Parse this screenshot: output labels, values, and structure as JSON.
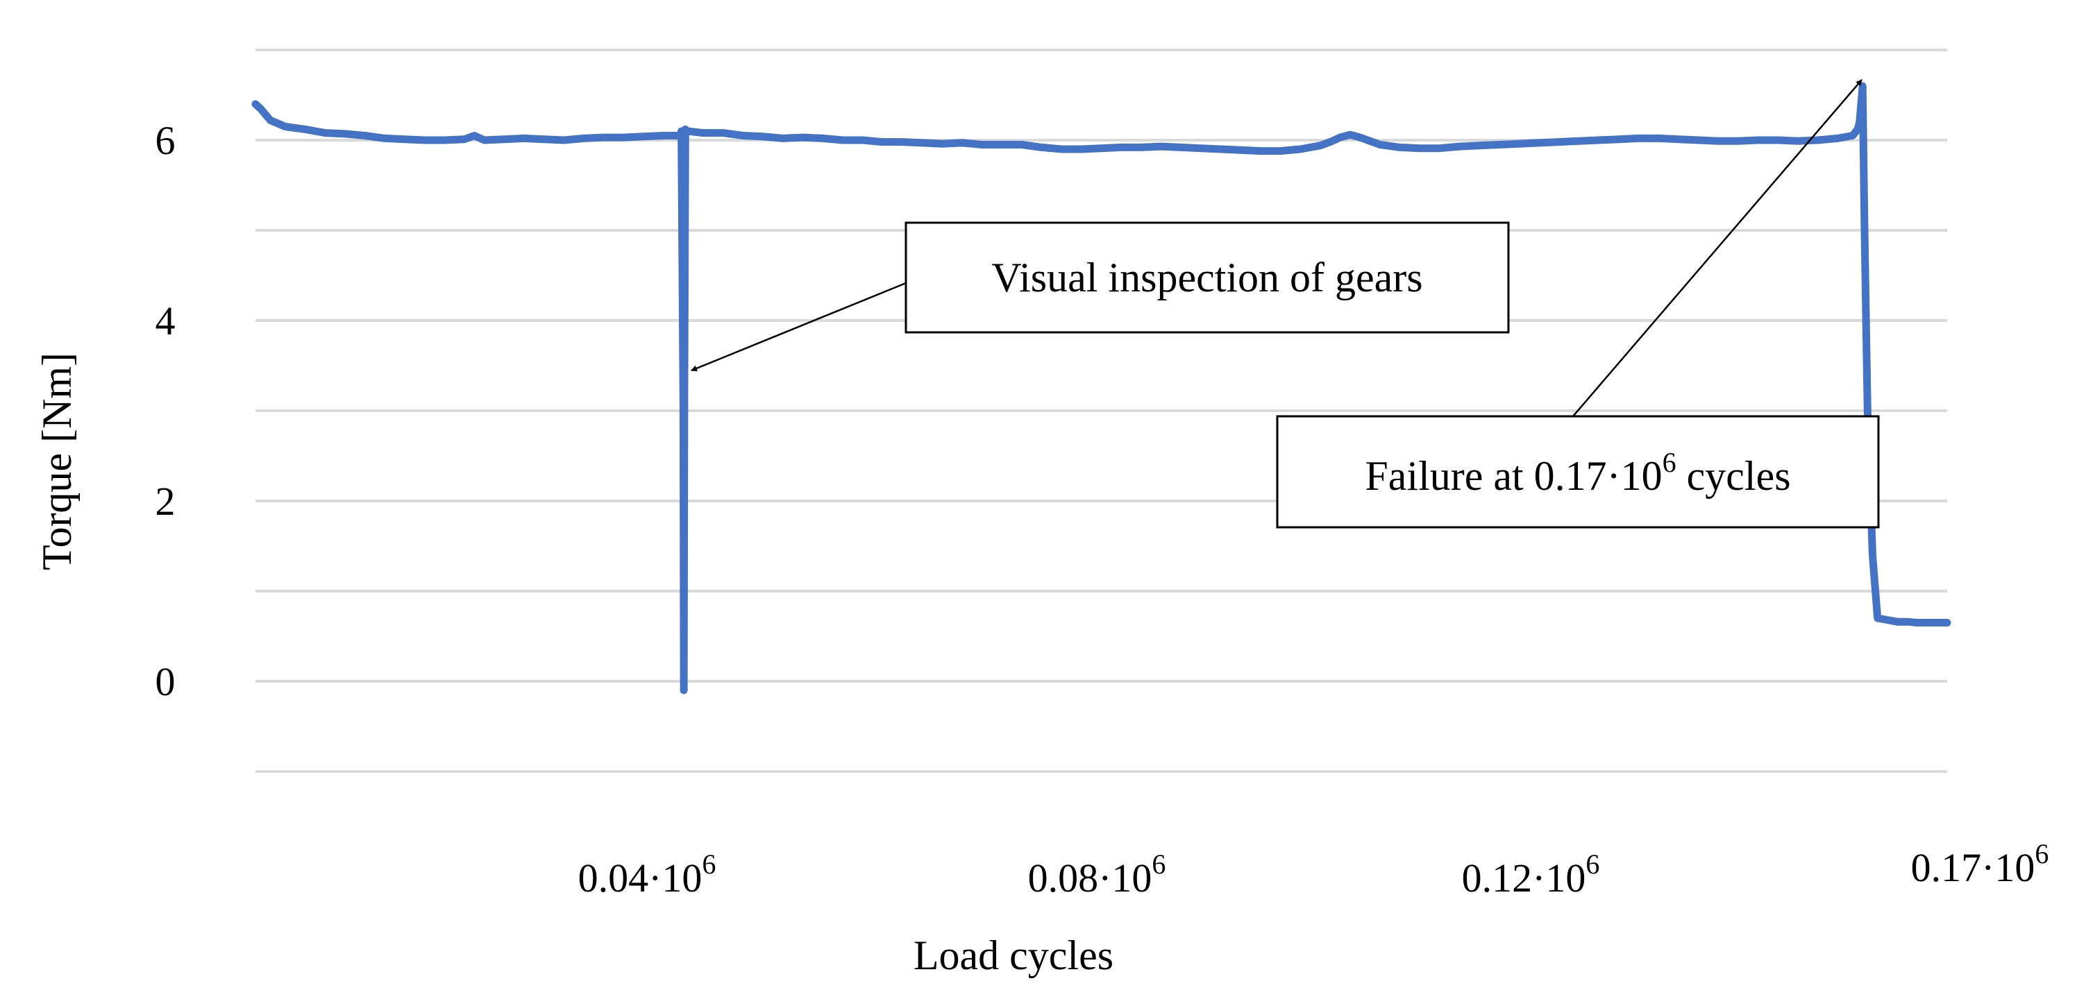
{
  "chart_data": {
    "type": "line",
    "title": "",
    "xlabel": "Load cycles",
    "ylabel": "Torque [Nm]",
    "xlim": [
      0,
      170000
    ],
    "ylim": [
      -1,
      7
    ],
    "grid": true,
    "y_gridlines": [
      -1,
      0,
      1,
      2,
      3,
      4,
      5,
      6,
      7
    ],
    "y_ticks": [
      {
        "value": 0,
        "label": "0"
      },
      {
        "value": 2,
        "label": "2"
      },
      {
        "value": 4,
        "label": "4"
      },
      {
        "value": 6,
        "label": "6"
      }
    ],
    "x_ticks": [
      {
        "value": 40000,
        "mantissa": "0.04·10",
        "exponent": "6"
      },
      {
        "value": 80000,
        "mantissa": "0.08·10",
        "exponent": "6"
      },
      {
        "value": 120000,
        "mantissa": "0.12·10",
        "exponent": "6"
      },
      {
        "value": 170000,
        "mantissa": "0.17·10",
        "exponent": "6"
      }
    ],
    "series": [
      {
        "name": "Torque",
        "color": "#4472c4",
        "x": [
          0,
          500,
          1500,
          3000,
          5000,
          7000,
          9000,
          11000,
          13000,
          15000,
          17000,
          19000,
          21000,
          22000,
          23000,
          25000,
          27000,
          29000,
          31000,
          33000,
          35000,
          37000,
          39000,
          41000,
          42700,
          42800,
          43000,
          43050,
          43100,
          43200,
          43400,
          45000,
          47000,
          49000,
          51000,
          53000,
          55000,
          57000,
          59000,
          61000,
          63000,
          65000,
          67000,
          69000,
          71000,
          73000,
          75000,
          77000,
          79000,
          81000,
          83000,
          85000,
          87000,
          89000,
          91000,
          93000,
          95000,
          97000,
          99000,
          101000,
          103000,
          105000,
          107000,
          108000,
          109000,
          110000,
          111000,
          113000,
          115000,
          117000,
          119000,
          121000,
          123000,
          125000,
          127000,
          129000,
          131000,
          133000,
          135000,
          137000,
          139000,
          141000,
          143000,
          145000,
          147000,
          149000,
          151000,
          153000,
          155000,
          157000,
          159000,
          160500,
          161000,
          161200,
          161500,
          161700,
          161800,
          162000,
          162500,
          163000,
          164000,
          165000,
          166000,
          167000,
          168000,
          169000,
          170000
        ],
        "values": [
          6.4,
          6.35,
          6.22,
          6.15,
          6.12,
          6.08,
          6.07,
          6.05,
          6.02,
          6.01,
          6.0,
          6.0,
          6.01,
          6.05,
          6.0,
          6.01,
          6.02,
          6.01,
          6.0,
          6.02,
          6.03,
          6.03,
          6.04,
          6.05,
          6.05,
          6.1,
          3.0,
          -0.1,
          3.2,
          6.12,
          6.1,
          6.08,
          6.08,
          6.05,
          6.04,
          6.02,
          6.03,
          6.02,
          6.0,
          6.0,
          5.98,
          5.98,
          5.97,
          5.96,
          5.97,
          5.95,
          5.95,
          5.95,
          5.92,
          5.9,
          5.9,
          5.91,
          5.92,
          5.92,
          5.93,
          5.92,
          5.91,
          5.9,
          5.89,
          5.88,
          5.88,
          5.9,
          5.94,
          5.98,
          6.03,
          6.06,
          6.03,
          5.95,
          5.92,
          5.91,
          5.91,
          5.93,
          5.94,
          5.95,
          5.96,
          5.97,
          5.98,
          5.99,
          6.0,
          6.01,
          6.02,
          6.02,
          6.01,
          6.0,
          5.99,
          5.99,
          6.0,
          6.0,
          5.99,
          6.0,
          6.02,
          6.05,
          6.12,
          6.2,
          6.6,
          5.0,
          4.3,
          3.0,
          1.4,
          0.7,
          0.68,
          0.66,
          0.66,
          0.65,
          0.65,
          0.65,
          0.65
        ]
      }
    ],
    "annotations": [
      {
        "text": "Visual inspection of gears",
        "points_to": {
          "x": 43100,
          "y": 3.6
        }
      },
      {
        "prefix": "Failure at 0.17·10",
        "exponent": "6",
        "suffix": " cycles",
        "points_to": {
          "x": 161700,
          "y": 6.7
        }
      }
    ]
  }
}
